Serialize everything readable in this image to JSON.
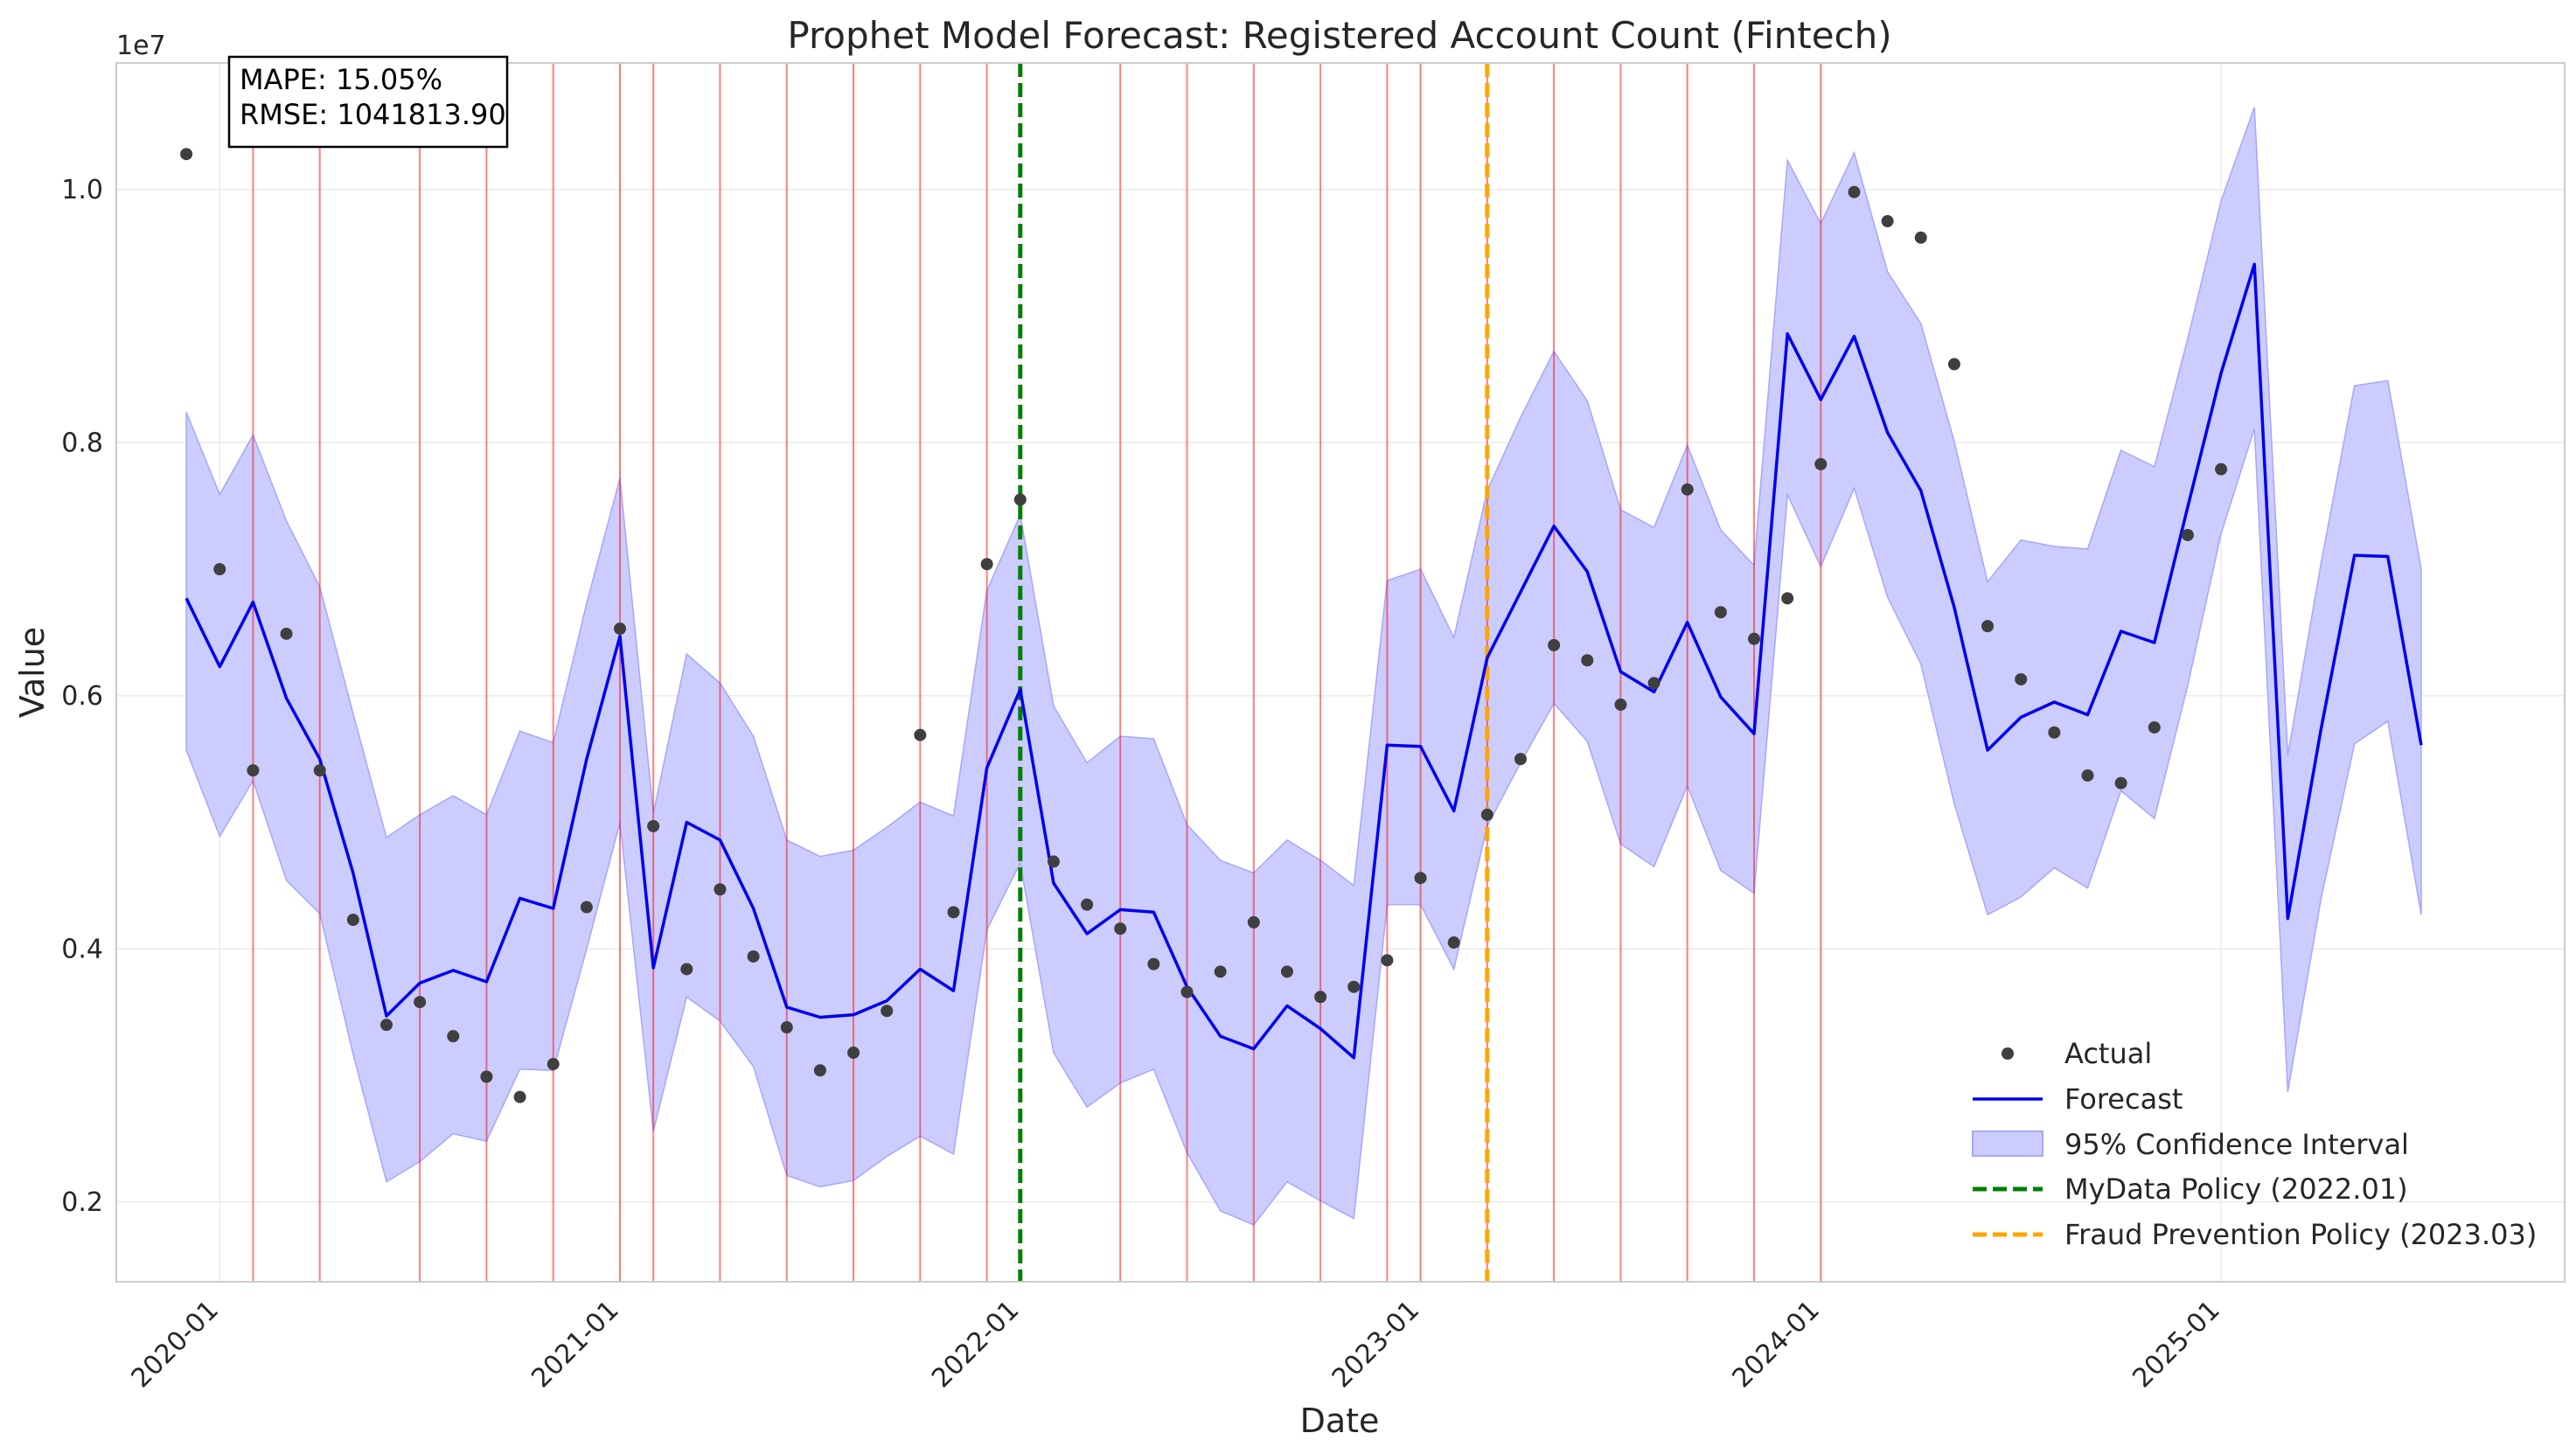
{
  "chart_data": {
    "type": "line",
    "title": "Prophet Model Forecast: Registered Account Count (Fintech)",
    "xlabel": "Date",
    "ylabel": "Value",
    "y_scale_label": "1e7",
    "ylim": [
      0.137,
      1.1
    ],
    "y_ticks": [
      0.2,
      0.4,
      0.6,
      0.8,
      1.0
    ],
    "y_tick_labels": [
      "0.2",
      "0.4",
      "0.6",
      "0.8",
      "1.0"
    ],
    "x_range_months": [
      -3.1,
      70.3
    ],
    "x_ticks_months": [
      0,
      12,
      24,
      36,
      48,
      60
    ],
    "x_tick_labels": [
      "2020-01",
      "2021-01",
      "2022-01",
      "2023-01",
      "2024-01",
      "2025-01"
    ],
    "grid": true,
    "legend_position": "lower-right",
    "metrics": {
      "mape": "MAPE: 15.05%",
      "rmse": "RMSE: 1041813.90"
    },
    "x_months": [
      -1,
      0,
      1,
      2,
      3,
      4,
      5,
      6,
      7,
      8,
      9,
      10,
      11,
      12,
      13,
      14,
      15,
      16,
      17,
      18,
      19,
      20,
      21,
      22,
      23,
      24,
      25,
      26,
      27,
      28,
      29,
      30,
      31,
      32,
      33,
      34,
      35,
      36,
      37,
      38,
      39,
      40,
      41,
      42,
      43,
      44,
      45,
      46,
      47,
      48,
      49,
      50,
      51,
      52,
      53,
      54,
      55,
      56,
      57,
      58,
      59,
      60,
      61,
      62,
      63,
      64,
      65,
      66
    ],
    "series": [
      {
        "name": "Actual",
        "kind": "scatter",
        "color": "#3f3f3f",
        "values": [
          1.028,
          0.7,
          0.541,
          0.649,
          0.541,
          0.423,
          0.34,
          0.358,
          0.331,
          0.299,
          0.283,
          0.309,
          0.433,
          0.653,
          0.497,
          0.384,
          0.447,
          0.394,
          0.338,
          0.304,
          0.318,
          0.351,
          0.569,
          0.429,
          0.704,
          0.755,
          0.469,
          0.435,
          0.416,
          0.388,
          0.366,
          0.382,
          0.421,
          0.382,
          0.362,
          0.37,
          0.391,
          0.456,
          0.405,
          0.506,
          0.55,
          0.64,
          0.628,
          0.593,
          0.61,
          0.763,
          0.666,
          0.645,
          0.677,
          0.783,
          0.998,
          0.975,
          0.962,
          0.862,
          0.655,
          0.613,
          0.571,
          0.537,
          0.531,
          0.575,
          0.727,
          0.779,
          null,
          null,
          null,
          null,
          null,
          null
        ]
      },
      {
        "name": "Forecast",
        "kind": "line",
        "color": "#0000ee",
        "values": [
          0.677,
          0.623,
          0.674,
          0.598,
          0.55,
          0.46,
          0.347,
          0.373,
          0.383,
          0.374,
          0.44,
          0.432,
          0.55,
          0.647,
          0.385,
          0.5,
          0.486,
          0.432,
          0.354,
          0.346,
          0.348,
          0.359,
          0.384,
          0.367,
          0.543,
          0.605,
          0.452,
          0.412,
          0.431,
          0.429,
          0.37,
          0.331,
          0.321,
          0.355,
          0.337,
          0.314,
          0.561,
          0.56,
          0.509,
          0.63,
          0.682,
          0.734,
          0.698,
          0.619,
          0.603,
          0.658,
          0.599,
          0.57,
          0.886,
          0.834,
          0.884,
          0.808,
          0.762,
          0.67,
          0.557,
          0.583,
          0.595,
          0.585,
          0.651,
          0.642,
          0.749,
          0.855,
          0.941,
          0.424,
          0.574,
          0.711,
          0.71,
          0.561
        ]
      },
      {
        "name": "95% Confidence Interval",
        "kind": "band",
        "color": "#ccccff",
        "lower": [
          0.557,
          0.489,
          0.533,
          0.454,
          0.428,
          0.317,
          0.216,
          0.232,
          0.254,
          0.248,
          0.305,
          0.304,
          0.4,
          0.5,
          0.256,
          0.362,
          0.343,
          0.307,
          0.221,
          0.212,
          0.217,
          0.236,
          0.252,
          0.238,
          0.415,
          0.468,
          0.318,
          0.275,
          0.294,
          0.305,
          0.239,
          0.193,
          0.182,
          0.216,
          0.201,
          0.187,
          0.435,
          0.435,
          0.384,
          0.497,
          0.547,
          0.594,
          0.564,
          0.483,
          0.465,
          0.529,
          0.462,
          0.444,
          0.759,
          0.702,
          0.764,
          0.678,
          0.625,
          0.515,
          0.427,
          0.441,
          0.464,
          0.448,
          0.525,
          0.503,
          0.608,
          0.728,
          0.811,
          0.287,
          0.44,
          0.562,
          0.58,
          0.427
        ],
        "upper": [
          0.824,
          0.759,
          0.806,
          0.738,
          0.686,
          0.586,
          0.488,
          0.506,
          0.521,
          0.506,
          0.572,
          0.563,
          0.673,
          0.772,
          0.507,
          0.633,
          0.61,
          0.568,
          0.486,
          0.473,
          0.478,
          0.496,
          0.516,
          0.505,
          0.683,
          0.743,
          0.592,
          0.547,
          0.568,
          0.566,
          0.498,
          0.47,
          0.46,
          0.486,
          0.47,
          0.45,
          0.691,
          0.7,
          0.646,
          0.762,
          0.82,
          0.872,
          0.833,
          0.747,
          0.733,
          0.798,
          0.731,
          0.703,
          1.023,
          0.973,
          1.029,
          0.935,
          0.894,
          0.801,
          0.69,
          0.723,
          0.718,
          0.716,
          0.794,
          0.781,
          0.882,
          0.991,
          1.065,
          0.553,
          0.705,
          0.845,
          0.849,
          0.7
        ]
      }
    ],
    "red_vlines_months": [
      1,
      3,
      6,
      8,
      10,
      12,
      13,
      15,
      17,
      19,
      21,
      23,
      27,
      29,
      31,
      33,
      35,
      36,
      38,
      40,
      42,
      44,
      46,
      48
    ],
    "policy_lines": [
      {
        "name": "MyData Policy (2022.01)",
        "month": 24,
        "color": "#008000"
      },
      {
        "name": "Fraud Prevention Policy (2023.03)",
        "month": 38,
        "color": "#ffa500"
      }
    ]
  }
}
